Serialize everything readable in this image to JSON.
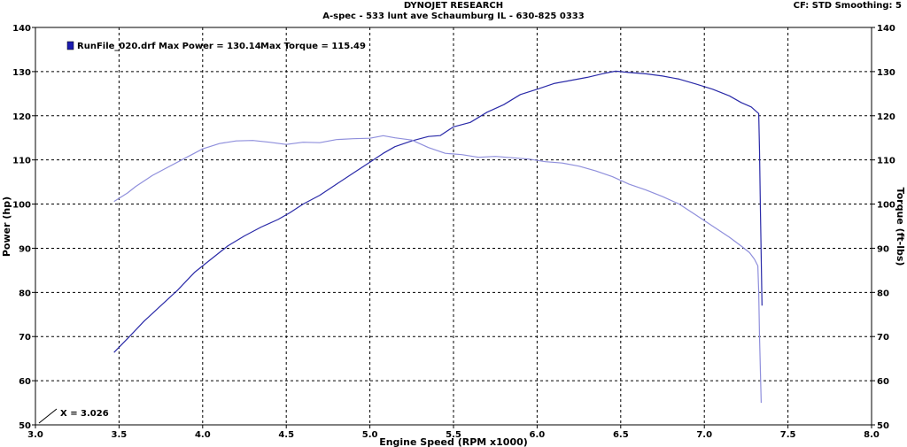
{
  "header": {
    "title": "DYNOJET RESEARCH",
    "subtitle": "A-spec - 533 lunt ave Schaumburg IL - 630-825 0333",
    "settings": "CF: STD  Smoothing: 5"
  },
  "chart_data": {
    "type": "line",
    "xlabel": "Engine Speed (RPM x1000)",
    "ylabel": "Power (hp)",
    "y2label": "Torque (ft-lbs)",
    "xlim": [
      3.0,
      8.0
    ],
    "ylim": [
      50,
      140
    ],
    "y2lim": [
      50,
      140
    ],
    "x_ticks": [
      "3.0",
      "3.5",
      "4.0",
      "4.5",
      "5.0",
      "5.5",
      "6.0",
      "6.5",
      "7.0",
      "7.5",
      "8.0"
    ],
    "y_ticks": [
      "50",
      "60",
      "70",
      "80",
      "90",
      "100",
      "110",
      "120",
      "130",
      "140"
    ],
    "grid": true,
    "legend": {
      "run_label": "RunFile_020.drf Max Power = 130.14",
      "torque_label": "Max Torque = 115.49",
      "placement": "top-left",
      "swatch_color": "#1c1cb0"
    },
    "annotation": "X = 3.026",
    "series": [
      {
        "color": "#2a2aa8",
        "axis": "left",
        "points": [
          [
            3.47,
            66.4
          ],
          [
            3.55,
            69.5
          ],
          [
            3.65,
            73.5
          ],
          [
            3.75,
            77
          ],
          [
            3.85,
            80.5
          ],
          [
            3.95,
            84.5
          ],
          [
            4.05,
            87.5
          ],
          [
            4.15,
            90.5
          ],
          [
            4.25,
            92.8
          ],
          [
            4.35,
            94.8
          ],
          [
            4.45,
            96.5
          ],
          [
            4.52,
            98
          ],
          [
            4.6,
            100
          ],
          [
            4.7,
            102
          ],
          [
            4.8,
            104.5
          ],
          [
            4.9,
            107
          ],
          [
            5.0,
            109.5
          ],
          [
            5.08,
            111.5
          ],
          [
            5.15,
            113
          ],
          [
            5.25,
            114.3
          ],
          [
            5.35,
            115.3
          ],
          [
            5.42,
            115.5
          ],
          [
            5.5,
            117.5
          ],
          [
            5.6,
            118.5
          ],
          [
            5.7,
            120.8
          ],
          [
            5.8,
            122.5
          ],
          [
            5.9,
            124.8
          ],
          [
            6.0,
            126
          ],
          [
            6.1,
            127.3
          ],
          [
            6.2,
            128
          ],
          [
            6.3,
            128.7
          ],
          [
            6.4,
            129.6
          ],
          [
            6.47,
            130.1
          ],
          [
            6.55,
            129.8
          ],
          [
            6.65,
            129.5
          ],
          [
            6.75,
            129
          ],
          [
            6.85,
            128.3
          ],
          [
            6.95,
            127.2
          ],
          [
            7.05,
            126
          ],
          [
            7.15,
            124.5
          ],
          [
            7.22,
            123
          ],
          [
            7.28,
            122
          ],
          [
            7.31,
            121
          ],
          [
            7.325,
            120.5
          ],
          [
            7.33,
            112
          ],
          [
            7.335,
            100
          ],
          [
            7.34,
            88
          ],
          [
            7.345,
            77
          ]
        ]
      },
      {
        "color": "#8f8fdc",
        "axis": "right",
        "points": [
          [
            3.47,
            100.6
          ],
          [
            3.55,
            102.5
          ],
          [
            3.6,
            104
          ],
          [
            3.7,
            106.5
          ],
          [
            3.8,
            108.5
          ],
          [
            3.9,
            110.5
          ],
          [
            4.0,
            112.5
          ],
          [
            4.1,
            113.7
          ],
          [
            4.2,
            114.3
          ],
          [
            4.3,
            114.4
          ],
          [
            4.4,
            114
          ],
          [
            4.5,
            113.5
          ],
          [
            4.6,
            114
          ],
          [
            4.7,
            113.9
          ],
          [
            4.8,
            114.6
          ],
          [
            4.9,
            114.8
          ],
          [
            5.0,
            114.9
          ],
          [
            5.08,
            115.49
          ],
          [
            5.15,
            115
          ],
          [
            5.25,
            114.5
          ],
          [
            5.35,
            112.8
          ],
          [
            5.45,
            111.5
          ],
          [
            5.55,
            111.2
          ],
          [
            5.65,
            110.6
          ],
          [
            5.75,
            110.8
          ],
          [
            5.85,
            110.5
          ],
          [
            5.95,
            110.2
          ],
          [
            6.05,
            109.6
          ],
          [
            6.15,
            109.3
          ],
          [
            6.25,
            108.6
          ],
          [
            6.35,
            107.5
          ],
          [
            6.45,
            106.2
          ],
          [
            6.55,
            104.5
          ],
          [
            6.65,
            103.2
          ],
          [
            6.75,
            101.7
          ],
          [
            6.85,
            100
          ],
          [
            6.95,
            97.5
          ],
          [
            7.05,
            95
          ],
          [
            7.15,
            92.5
          ],
          [
            7.22,
            90.5
          ],
          [
            7.27,
            89
          ],
          [
            7.3,
            87.5
          ],
          [
            7.32,
            86
          ],
          [
            7.325,
            80
          ],
          [
            7.33,
            70
          ],
          [
            7.34,
            55
          ]
        ]
      }
    ]
  }
}
